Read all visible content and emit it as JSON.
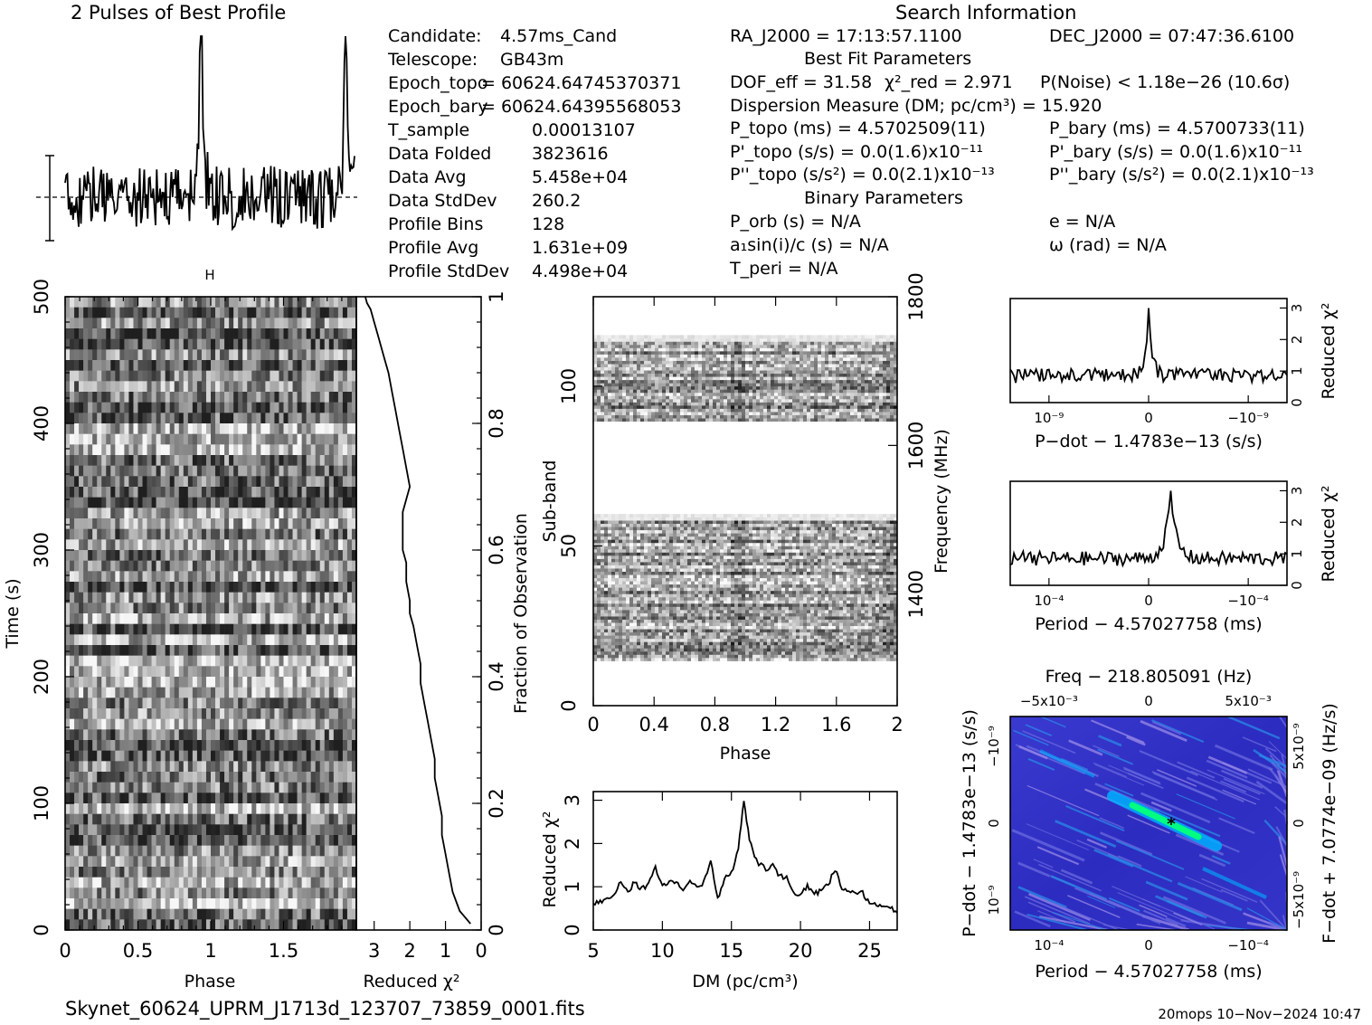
{
  "header": {
    "profile_title": "2 Pulses of Best Profile",
    "search_title": "Search Information"
  },
  "info_left": [
    {
      "label": "Candidate:",
      "value": "4.57ms_Cand"
    },
    {
      "label": "Telescope:",
      "value": "GB43m"
    },
    {
      "label": "Epoch_topo",
      "value": "= 60624.64745370371"
    },
    {
      "label": "Epoch_bary",
      "value": "= 60624.64395568053"
    },
    {
      "label": "T_sample",
      "value": "0.00013107"
    },
    {
      "label": "Data Folded",
      "value": "3823616"
    },
    {
      "label": "Data Avg",
      "value": "5.458e+04"
    },
    {
      "label": "Data StdDev",
      "value": "260.2"
    },
    {
      "label": "Profile Bins",
      "value": "128"
    },
    {
      "label": "Profile Avg",
      "value": "1.631e+09"
    },
    {
      "label": "Profile StdDev",
      "value": "4.498e+04"
    }
  ],
  "info_right": {
    "ra": "RA_J2000 = 17:13:57.1100",
    "dec": "DEC_J2000 = 07:47:36.6100",
    "best_fit_title": "Best Fit Parameters",
    "dof": "DOF_eff = 31.58",
    "chi2": "χ²_red = 2.971",
    "pnoise": "P(Noise) < 1.18e−26  (10.6σ)",
    "dm": "Dispersion Measure (DM; pc/cm³) = 15.920",
    "ptopo": "P_topo (ms) =  4.5702509(11)",
    "pbary": "P_bary (ms) =  4.5700733(11)",
    "pdtopo": "P'_topo (s/s) = 0.0(1.6)x10⁻¹¹",
    "pdbary": "P'_bary (s/s) = 0.0(1.6)x10⁻¹¹",
    "pddtopo": "P''_topo (s/s²) = 0.0(2.1)x10⁻¹³",
    "pddbary": "P''_bary (s/s²) = 0.0(2.1)x10⁻¹³",
    "binary_title": "Binary Parameters",
    "porb": "P_orb (s) = N/A",
    "e": "e = N/A",
    "asini": "a₁sin(i)/c (s) = N/A",
    "omega": "ω (rad) = N/A",
    "tperi": "T_peri = N/A"
  },
  "footer": {
    "filename": "Skynet_60624_UPRM_J1713d_123707_73859_0001.fits",
    "stamp": "20mops 10−Nov−2024 10:47"
  },
  "chart_data": [
    {
      "type": "line",
      "name": "profile",
      "title": "2 Pulses of Best Profile",
      "x": "phase 0-2",
      "pulse_peaks_phase": [
        0.94,
        1.94
      ]
    },
    {
      "type": "heatmap",
      "name": "time-phase",
      "xlabel": "Phase",
      "ylabel": "Time (s)",
      "xlim": [
        0,
        2
      ],
      "ylim": [
        0,
        500
      ],
      "xticks": [
        "0",
        "0.5",
        "1",
        "1.5"
      ],
      "yticks": [
        "0",
        "100",
        "200",
        "300",
        "400",
        "500"
      ]
    },
    {
      "type": "line",
      "name": "reduced-chi2-vs-fraction",
      "xlabel": "Reduced χ²",
      "ylabel": "Fraction of Observation",
      "xticks": [
        "3",
        "2",
        "1",
        "0"
      ],
      "yticks": [
        "0",
        "0.2",
        "0.4",
        "0.6",
        "0.8",
        "1"
      ],
      "x": [
        0.3,
        0.6,
        0.8,
        0.9,
        1.0,
        1.1,
        1.1,
        1.2,
        1.3,
        1.3,
        1.4,
        1.5,
        1.6,
        1.7,
        1.7,
        1.8,
        1.9,
        2.0,
        2.0,
        2.1,
        2.1,
        2.2,
        2.2,
        2.2,
        2.0,
        2.1,
        2.2,
        2.3,
        2.4,
        2.5,
        2.6,
        2.7,
        2.8,
        2.9,
        3.0,
        3.1,
        3.2,
        3.25
      ],
      "y": [
        0.01,
        0.03,
        0.06,
        0.09,
        0.12,
        0.15,
        0.18,
        0.21,
        0.24,
        0.27,
        0.3,
        0.33,
        0.36,
        0.39,
        0.42,
        0.45,
        0.48,
        0.5,
        0.52,
        0.55,
        0.58,
        0.6,
        0.63,
        0.66,
        0.7,
        0.73,
        0.76,
        0.79,
        0.82,
        0.85,
        0.88,
        0.9,
        0.92,
        0.94,
        0.96,
        0.98,
        0.99,
        1.0
      ]
    },
    {
      "type": "heatmap",
      "name": "subband-phase",
      "xlabel": "Phase",
      "ylabel": "Sub-band",
      "y2label": "Frequency (MHz)",
      "xticks": [
        "0",
        "0.4",
        "0.8",
        "1.2",
        "1.6",
        "2"
      ],
      "yticks": [
        "0",
        "50",
        "100"
      ],
      "y2ticks": [
        "1400",
        "1600",
        "1800"
      ]
    },
    {
      "type": "line",
      "name": "dm-curve",
      "xlabel": "DM (pc/cm³)",
      "ylabel": "Reduced χ²",
      "xlim": [
        5,
        27
      ],
      "ylim": [
        0,
        3.2
      ],
      "xticks": [
        "5",
        "10",
        "15",
        "20",
        "25"
      ],
      "yticks": [
        "0",
        "1",
        "2",
        "3"
      ],
      "x": [
        5,
        5.5,
        6,
        6.5,
        7,
        7.5,
        8,
        8.5,
        9,
        9.5,
        10,
        10.5,
        11,
        11.5,
        12,
        12.5,
        13,
        13.5,
        14,
        14.5,
        15,
        15.5,
        15.9,
        16.3,
        16.8,
        17.5,
        18,
        18.5,
        19,
        19.5,
        20,
        20.5,
        21,
        21.5,
        22,
        22.5,
        23,
        23.5,
        24,
        24.5,
        25,
        25.5,
        26,
        26.5,
        27
      ],
      "y": [
        0.6,
        0.65,
        0.75,
        0.8,
        1.15,
        0.9,
        1.1,
        0.95,
        1.05,
        1.45,
        1.0,
        1.1,
        1.15,
        0.9,
        1.1,
        1.0,
        1.1,
        1.6,
        0.7,
        1.2,
        1.3,
        1.9,
        2.95,
        2.1,
        1.6,
        1.4,
        1.5,
        1.25,
        1.2,
        0.9,
        0.8,
        1.0,
        0.85,
        0.9,
        1.05,
        1.4,
        1.0,
        0.9,
        0.8,
        0.85,
        0.65,
        0.6,
        0.5,
        0.55,
        0.4
      ]
    },
    {
      "type": "line",
      "name": "pdot-curve",
      "xlabel": "P−dot − 1.4783e−13 (s/s)",
      "ylabel": "Reduced χ²",
      "xticks": [
        "10⁻⁹",
        "0",
        "−10⁻⁹"
      ],
      "yticks": [
        "0",
        "1",
        "2",
        "3"
      ],
      "peak": 3.0
    },
    {
      "type": "line",
      "name": "period-curve",
      "xlabel": "Period − 4.57027758 (ms)",
      "ylabel": "Reduced χ²",
      "xticks": [
        "10⁻⁴",
        "0",
        "−10⁻⁴"
      ],
      "yticks": [
        "0",
        "1",
        "2",
        "3"
      ],
      "peak": 3.0
    },
    {
      "type": "heatmap",
      "name": "period-pdot",
      "title": "Freq − 218.805091 (Hz)",
      "xlabel": "Period − 4.57027758 (ms)",
      "ylabel": "P−dot − 1.4783e−13 (s/s)",
      "y2label": "F−dot + 7.0774e−09 (Hz/s)",
      "xticks": [
        "10⁻⁴",
        "0",
        "−10⁻⁴"
      ],
      "x2ticks": [
        "−5x10⁻³",
        "0",
        "5x10⁻³"
      ],
      "yticks": [
        "10⁻⁹",
        "0",
        "−10⁻⁹"
      ],
      "y2ticks": [
        "−5x10⁻⁹",
        "0",
        "5x10⁻⁹"
      ],
      "colors": {
        "low": "#3030c8",
        "mid": "#00b0ff",
        "high": "#00ff80"
      }
    }
  ]
}
